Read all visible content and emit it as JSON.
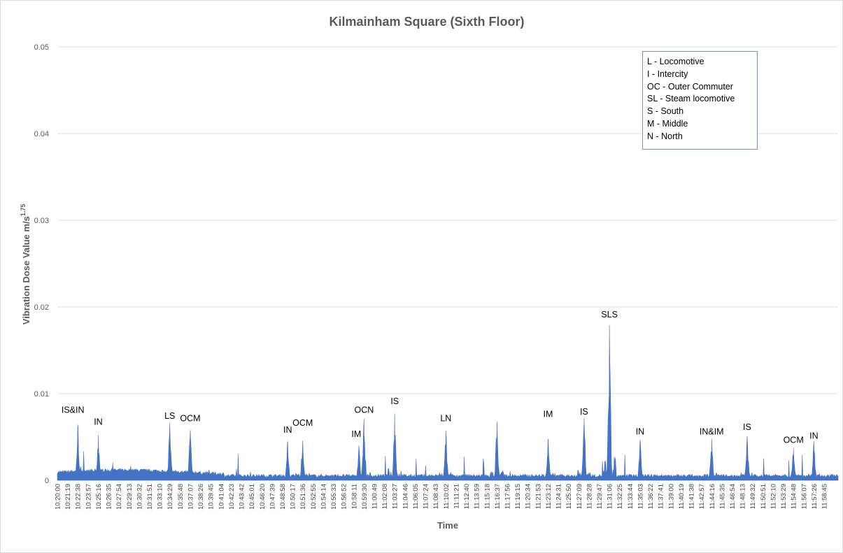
{
  "chart_data": {
    "type": "line",
    "title": "Kilmainham Square (Sixth Floor)",
    "xlabel": "Time",
    "ylabel": "Vibration Dose Value m/s",
    "ylabel_superscript": "1.75",
    "ylim": [
      0,
      0.05
    ],
    "yticks": [
      "0",
      "0.01",
      "0.02",
      "0.03",
      "0.04",
      "0.05"
    ],
    "grid": true,
    "series_color": "#4472c4",
    "x_tick_labels": [
      "10:20:00",
      "10:21:19",
      "10:22:38",
      "10:23:57",
      "10:25:16",
      "10:26:35",
      "10:27:54",
      "10:29:13",
      "10:30:32",
      "10:31:51",
      "10:33:10",
      "10:34:29",
      "10:35:48",
      "10:37:07",
      "10:38:26",
      "10:39:45",
      "10:41:04",
      "10:42:23",
      "10:43:42",
      "10:45:01",
      "10:46:20",
      "10:47:39",
      "10:48:58",
      "10:50:17",
      "10:51:36",
      "10:52:55",
      "10:54:14",
      "10:55:33",
      "10:56:52",
      "10:58:11",
      "10:59:30",
      "11:00:49",
      "11:02:08",
      "11:03:27",
      "11:04:46",
      "11:06:05",
      "11:07:24",
      "11:08:43",
      "11:10:02",
      "11:11:21",
      "11:12:40",
      "11:13:59",
      "11:15:18",
      "11:16:37",
      "11:17:56",
      "11:19:15",
      "11:20:34",
      "11:21:53",
      "11:23:12",
      "11:24:31",
      "11:25:50",
      "11:27:09",
      "11:28:28",
      "11:29:47",
      "11:31:06",
      "11:32:25",
      "11:33:44",
      "11:35:03",
      "11:36:22",
      "11:37:41",
      "11:39:00",
      "11:40:19",
      "11:41:38",
      "11:42:57",
      "11:44:16",
      "11:45:35",
      "11:46:54",
      "11:48:13",
      "11:49:32",
      "11:50:51",
      "11:52:10",
      "11:53:29",
      "11:54:48",
      "11:56:07",
      "11:57:26",
      "11:58:45"
    ],
    "peaks": [
      {
        "time": "10:22:38",
        "value": 0.0064
      },
      {
        "time": "10:25:16",
        "value": 0.0052
      },
      {
        "time": "10:34:29",
        "value": 0.0066
      },
      {
        "time": "10:37:07",
        "value": 0.0058
      },
      {
        "time": "10:49:40",
        "value": 0.0045
      },
      {
        "time": "10:51:36",
        "value": 0.0046
      },
      {
        "time": "10:58:50",
        "value": 0.004
      },
      {
        "time": "10:59:30",
        "value": 0.0071
      },
      {
        "time": "11:03:27",
        "value": 0.0077
      },
      {
        "time": "11:10:02",
        "value": 0.0057
      },
      {
        "time": "11:16:37",
        "value": 0.0068
      },
      {
        "time": "11:23:12",
        "value": 0.0048
      },
      {
        "time": "11:27:50",
        "value": 0.0072
      },
      {
        "time": "11:31:06",
        "value": 0.0179
      },
      {
        "time": "11:35:03",
        "value": 0.0047
      },
      {
        "time": "11:44:16",
        "value": 0.0048
      },
      {
        "time": "11:48:50",
        "value": 0.0051
      },
      {
        "time": "11:54:48",
        "value": 0.0037
      },
      {
        "time": "11:57:26",
        "value": 0.0045
      }
    ],
    "annotations": [
      {
        "text": "IS&IN",
        "time": "10:22:00",
        "value": 0.0078
      },
      {
        "text": "IN",
        "time": "10:25:16",
        "value": 0.0064
      },
      {
        "text": "LS",
        "time": "10:34:29",
        "value": 0.0071
      },
      {
        "text": "OCM",
        "time": "10:37:07",
        "value": 0.0068
      },
      {
        "text": "IN",
        "time": "10:49:40",
        "value": 0.0055
      },
      {
        "text": "OCM",
        "time": "10:51:36",
        "value": 0.0063
      },
      {
        "text": "IM",
        "time": "10:58:30",
        "value": 0.005
      },
      {
        "text": "OCN",
        "time": "10:59:30",
        "value": 0.0078
      },
      {
        "text": "IS",
        "time": "11:03:27",
        "value": 0.0088
      },
      {
        "text": "LN",
        "time": "11:10:02",
        "value": 0.0068
      },
      {
        "text": "IM",
        "time": "11:23:12",
        "value": 0.0073
      },
      {
        "text": "IS",
        "time": "11:27:50",
        "value": 0.0076
      },
      {
        "text": "SLS",
        "time": "11:31:06",
        "value": 0.0188
      },
      {
        "text": "IN",
        "time": "11:35:03",
        "value": 0.0053
      },
      {
        "text": "IN&IM",
        "time": "11:44:16",
        "value": 0.0053
      },
      {
        "text": "IS",
        "time": "11:48:50",
        "value": 0.0058
      },
      {
        "text": "OCM",
        "time": "11:54:48",
        "value": 0.0043
      },
      {
        "text": "IN",
        "time": "11:57:26",
        "value": 0.0048
      }
    ],
    "legend_placement": "top-right",
    "legend": [
      "L - Locomotive",
      "I - Intercity",
      "OC - Outer Commuter",
      "SL - Steam locomotive",
      "S - South",
      "M - Middle",
      "N - North"
    ]
  }
}
